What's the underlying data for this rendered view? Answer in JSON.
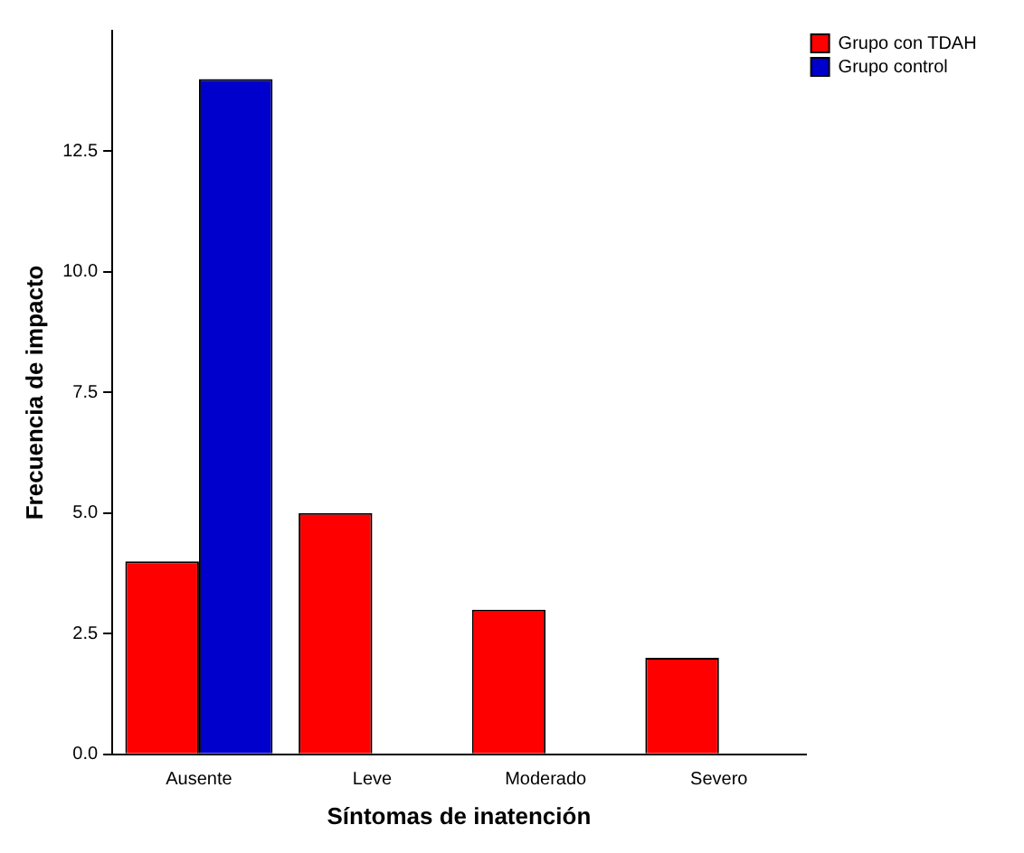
{
  "chart_data": {
    "type": "bar",
    "xlabel": "Síntomas de inatención",
    "ylabel": "Frecuencia de impacto",
    "categories": [
      "Ausente",
      "Leve",
      "Moderado",
      "Severo"
    ],
    "series": [
      {
        "name": "Grupo con TDAH",
        "color": "#ff0000",
        "values": [
          4,
          5,
          3,
          2
        ]
      },
      {
        "name": "Grupo control",
        "color": "#0000cc",
        "values": [
          14,
          null,
          null,
          null
        ]
      }
    ],
    "ylim": [
      0,
      15
    ],
    "yticks": [
      {
        "value": 0,
        "label": "0.0"
      },
      2.5,
      {
        "value": 5,
        "label": "5.0"
      },
      7.5,
      {
        "value": 10,
        "label": "10.0"
      },
      12.5
    ],
    "grid": false,
    "legend": "top right"
  }
}
